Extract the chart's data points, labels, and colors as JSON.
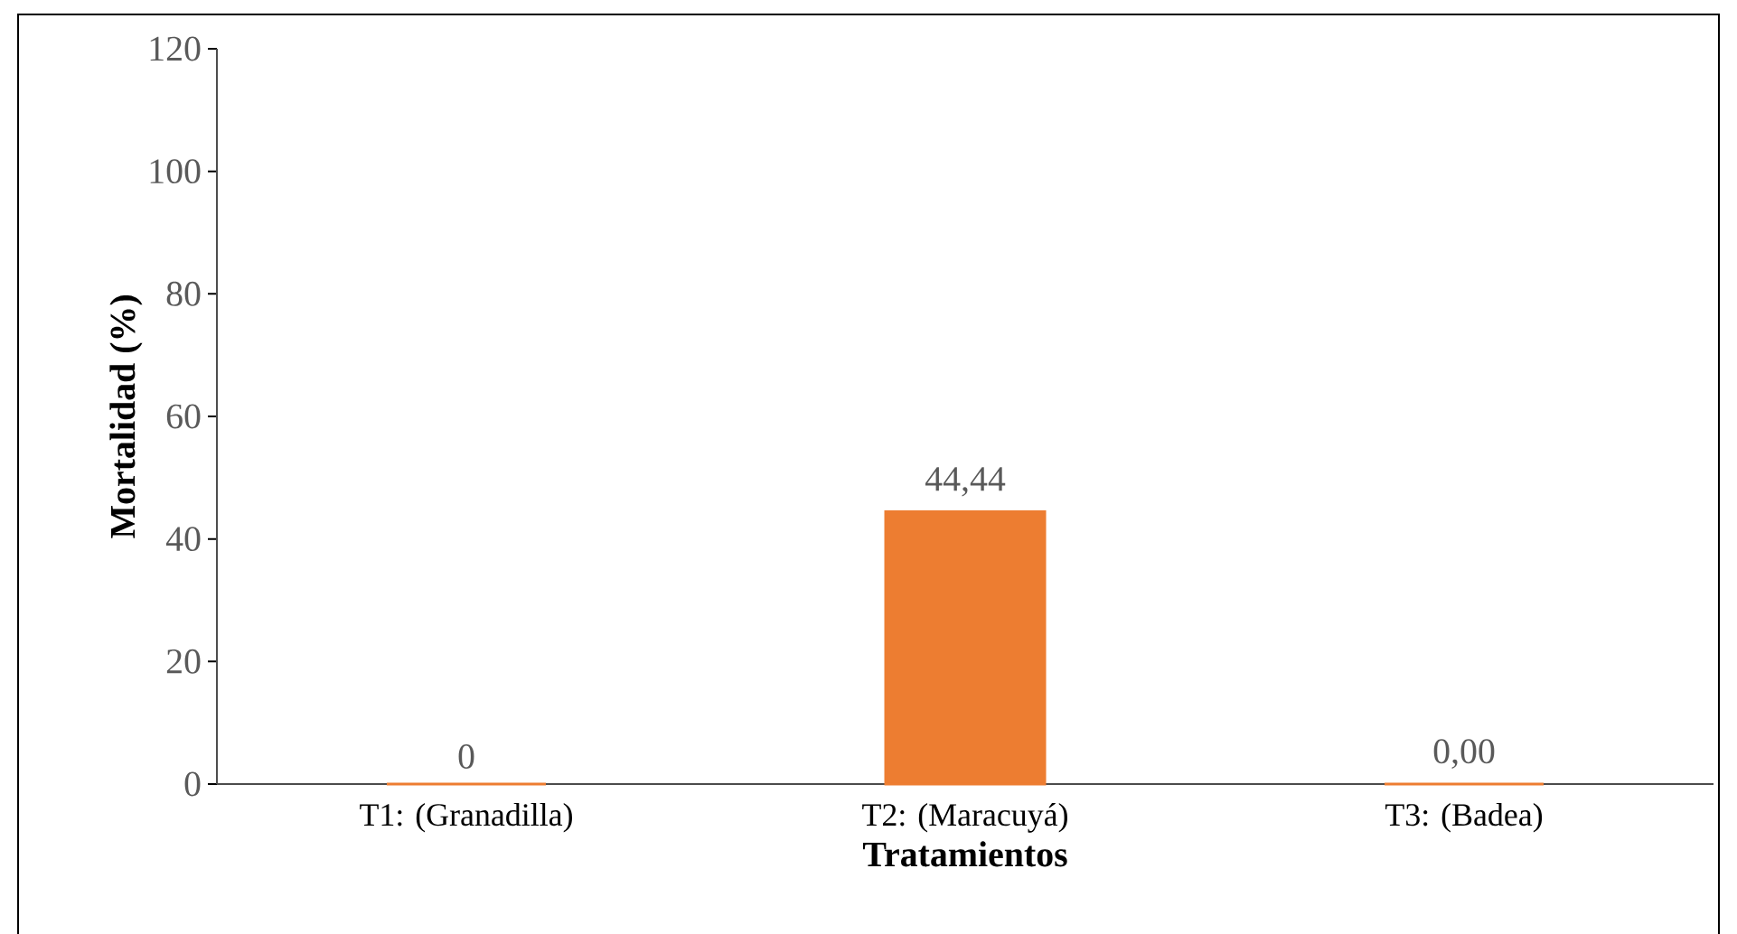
{
  "chart_data": {
    "type": "bar",
    "xlabel": "Tratamientos",
    "ylabel": "Mortalidad (%)",
    "categories": [
      "T1: (Granadilla)",
      "T2: (Maracuyá)",
      "T3: (Badea)"
    ],
    "values": [
      0,
      44.44,
      0
    ],
    "color": "#ed7d31",
    "value_labels": [
      "0",
      "44,44",
      "0,00"
    ],
    "ylim": [
      0,
      120
    ],
    "yticks": [
      0,
      20,
      40,
      60,
      80,
      100,
      120
    ],
    "grid": false
  }
}
